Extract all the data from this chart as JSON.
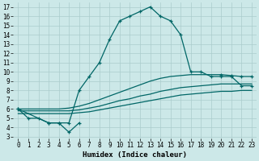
{
  "bg_color": "#cce8e8",
  "grid_color": "#aacccc",
  "line_color": "#006666",
  "xlim": [
    -0.5,
    23.5
  ],
  "ylim": [
    2.8,
    17.5
  ],
  "xticks": [
    0,
    1,
    2,
    3,
    4,
    5,
    6,
    7,
    8,
    9,
    10,
    11,
    12,
    13,
    14,
    15,
    16,
    17,
    18,
    19,
    20,
    21,
    22,
    23
  ],
  "yticks": [
    3,
    4,
    5,
    6,
    7,
    8,
    9,
    10,
    11,
    12,
    13,
    14,
    15,
    16,
    17
  ],
  "xlabel": "Humidex (Indice chaleur)",
  "arch_x": [
    0,
    1,
    2,
    3,
    4,
    5,
    6,
    7,
    8,
    9,
    10,
    11,
    12,
    13,
    14,
    15,
    16,
    17,
    18,
    19,
    20,
    21,
    22,
    23
  ],
  "arch_y": [
    6,
    5,
    5,
    4.5,
    4.5,
    4.5,
    8,
    9.5,
    11,
    13.5,
    15.5,
    16,
    16.5,
    17,
    16,
    15.5,
    14,
    10,
    10,
    9.5,
    9.5,
    9.5,
    8.5,
    8.5
  ],
  "dip_x": [
    0,
    3,
    4,
    5,
    6
  ],
  "dip_y": [
    6,
    4.5,
    4.5,
    3.5,
    4.5
  ],
  "flat_lo_x": [
    0,
    1,
    2,
    3,
    4,
    5,
    6,
    7,
    8,
    9,
    10,
    11,
    12,
    13,
    14,
    15,
    16,
    17,
    18,
    19,
    20,
    21,
    22,
    23
  ],
  "flat_lo_y": [
    5.5,
    5.5,
    5.5,
    5.5,
    5.5,
    5.5,
    5.6,
    5.7,
    5.9,
    6.1,
    6.3,
    6.5,
    6.7,
    6.9,
    7.1,
    7.3,
    7.5,
    7.6,
    7.7,
    7.8,
    7.9,
    7.9,
    8.0,
    8.0
  ],
  "flat_mid_x": [
    0,
    1,
    2,
    3,
    4,
    5,
    6,
    7,
    8,
    9,
    10,
    11,
    12,
    13,
    14,
    15,
    16,
    17,
    18,
    19,
    20,
    21,
    22,
    23
  ],
  "flat_mid_y": [
    5.8,
    5.8,
    5.8,
    5.8,
    5.8,
    5.8,
    5.9,
    6.1,
    6.3,
    6.6,
    6.9,
    7.1,
    7.4,
    7.6,
    7.9,
    8.1,
    8.3,
    8.4,
    8.5,
    8.6,
    8.7,
    8.7,
    8.7,
    8.7
  ],
  "flat_hi_x": [
    0,
    1,
    2,
    3,
    4,
    5,
    6,
    7,
    8,
    9,
    10,
    11,
    12,
    13,
    14,
    15,
    16,
    17,
    18,
    19,
    20,
    21,
    22,
    23
  ],
  "flat_hi_y": [
    6.0,
    6.0,
    6.0,
    6.0,
    6.0,
    6.1,
    6.3,
    6.6,
    7.0,
    7.4,
    7.8,
    8.2,
    8.6,
    9.0,
    9.3,
    9.5,
    9.6,
    9.7,
    9.7,
    9.7,
    9.7,
    9.6,
    9.5,
    9.5
  ],
  "flat_hi_markers": [
    20,
    21,
    22,
    23
  ]
}
